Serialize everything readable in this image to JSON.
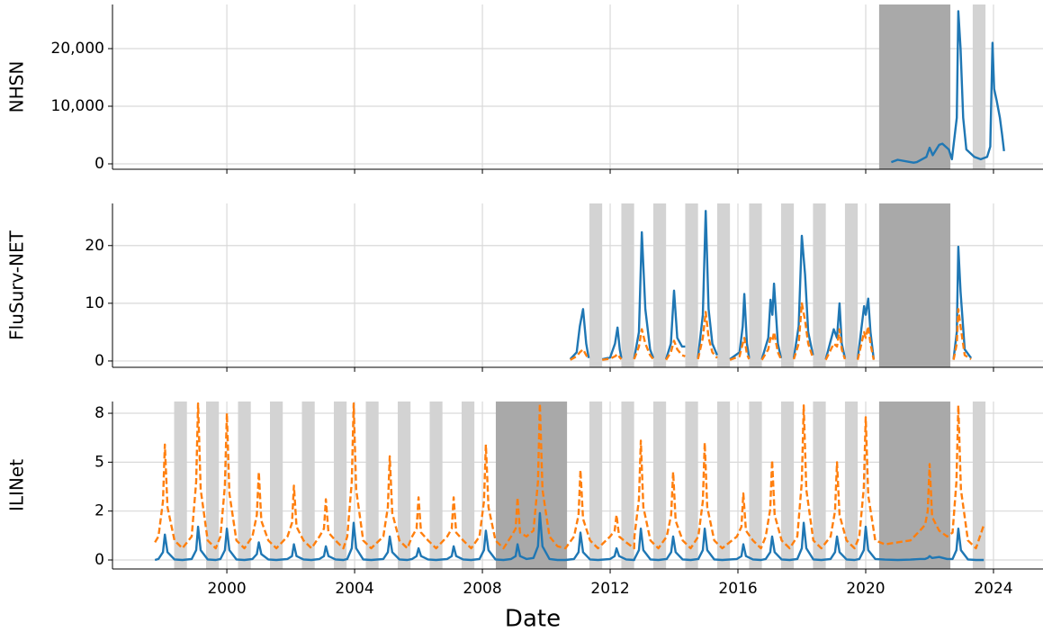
{
  "chart_data": [
    {
      "type": "line",
      "ylabel": "NHSN",
      "ylim": [
        -940,
        27660
      ],
      "yticks": [
        0,
        {
          "value": 10000,
          "label": "10,000"
        },
        {
          "value": 20000,
          "label": "20,000"
        }
      ],
      "light_spans": [
        [
          2023.35,
          2023.75
        ]
      ],
      "dark_spans": [
        [
          2020.42,
          2022.65
        ]
      ],
      "x": [
        2020.8,
        2021.0,
        2021.3,
        2021.5,
        2021.6,
        2021.9,
        2022.0,
        2022.1,
        2022.3,
        2022.4,
        2022.6,
        2022.7,
        2022.85,
        2022.9,
        2022.97,
        2023.05,
        2023.15,
        2023.4,
        2023.6,
        2023.8,
        2023.9,
        2023.97,
        2024.02,
        2024.1,
        2024.2,
        2024.27,
        2024.33
      ],
      "series": [
        {
          "color": "#1f77b4",
          "dashed": false,
          "values": [
            300,
            700,
            400,
            200,
            300,
            1200,
            2800,
            1500,
            3300,
            3500,
            2500,
            800,
            8000,
            26500,
            20000,
            8000,
            2500,
            1200,
            800,
            1200,
            3000,
            21000,
            13000,
            11000,
            8000,
            5000,
            2200
          ]
        }
      ]
    },
    {
      "type": "line",
      "ylabel": "FluSurv-NET",
      "ylim": [
        -1.1,
        27.3
      ],
      "yticks": [
        0,
        10,
        20
      ],
      "light_spans": [
        [
          2011.35,
          2011.75
        ],
        [
          2012.35,
          2012.75
        ],
        [
          2013.35,
          2013.75
        ],
        [
          2014.35,
          2014.75
        ],
        [
          2015.35,
          2015.75
        ],
        [
          2016.35,
          2016.75
        ],
        [
          2017.35,
          2017.75
        ],
        [
          2018.35,
          2018.75
        ],
        [
          2019.35,
          2019.75
        ]
      ],
      "dark_spans": [
        [
          2020.42,
          2022.65
        ]
      ],
      "x": [
        2010.75,
        2010.95,
        2011.05,
        2011.15,
        2011.25,
        2011.33,
        null,
        2011.75,
        2012.0,
        2012.15,
        2012.23,
        2012.3,
        2012.35,
        null,
        2012.75,
        2012.9,
        2012.99,
        2013.1,
        2013.25,
        2013.35,
        null,
        2013.75,
        2013.9,
        2014.0,
        2014.1,
        2014.25,
        2014.35,
        null,
        2014.75,
        2014.9,
        2014.99,
        2015.08,
        2015.2,
        2015.35,
        null,
        2015.75,
        2016.05,
        2016.15,
        2016.2,
        2016.28,
        2016.35,
        null,
        2016.75,
        2016.95,
        2017.02,
        2017.08,
        2017.13,
        2017.25,
        2017.35,
        null,
        2017.75,
        2017.9,
        2018.0,
        2018.1,
        2018.2,
        2018.35,
        null,
        2018.75,
        2019.0,
        2019.1,
        2019.18,
        2019.25,
        2019.35,
        null,
        2019.75,
        2019.95,
        2020.0,
        2020.08,
        2020.15,
        2020.25,
        null,
        2022.75,
        2022.85,
        2022.9,
        2022.97,
        2023.1,
        2023.3
      ],
      "series": [
        {
          "color": "#1f77b4",
          "dashed": false,
          "values": [
            0.3,
            1.5,
            6,
            9,
            3,
            0.5,
            null,
            0.3,
            0.6,
            3,
            5.8,
            2,
            0.5,
            null,
            0.4,
            5,
            22.3,
            9,
            2,
            0.5,
            null,
            0.3,
            3,
            12.2,
            4,
            2.5,
            2.5,
            null,
            0.5,
            8,
            26,
            9,
            3,
            1,
            null,
            0.3,
            1.5,
            6,
            11.6,
            3,
            0.5,
            null,
            0.3,
            4,
            10.6,
            8,
            13.4,
            3,
            0.5,
            null,
            0.5,
            6,
            21.7,
            15,
            5,
            1,
            null,
            0.3,
            5.5,
            4,
            10,
            3,
            0.5,
            null,
            0.3,
            9.5,
            8,
            10.8,
            5,
            0.3,
            null,
            0.3,
            5,
            19.8,
            12,
            2,
            0.5
          ]
        },
        {
          "color": "#ff7f0e",
          "dashed": true,
          "values": [
            0.2,
            0.8,
            1.5,
            2,
            1,
            0.3,
            null,
            0.2,
            0.4,
            0.8,
            1.2,
            0.6,
            0.3,
            null,
            0.3,
            2.5,
            5.5,
            3,
            1,
            0.3,
            null,
            0.2,
            1.5,
            3.5,
            2,
            1,
            0.8,
            null,
            0.3,
            4,
            8.5,
            4,
            1.5,
            0.5,
            null,
            0.2,
            0.8,
            3,
            4,
            1.2,
            0.3,
            null,
            0.2,
            2,
            4,
            3.5,
            5,
            1.5,
            0.3,
            null,
            0.3,
            3,
            10,
            7,
            3,
            0.5,
            null,
            0.2,
            3,
            2.5,
            5.5,
            2,
            0.3,
            null,
            0.2,
            5,
            4,
            6,
            3,
            0.2,
            null,
            0.2,
            3,
            9,
            6,
            1,
            0.3
          ]
        }
      ]
    },
    {
      "type": "line",
      "ylabel": "ILINet",
      "xlabel": "Date",
      "xlim": [
        1996.42,
        2025.55
      ],
      "xticks": [
        2000,
        2004,
        2008,
        2012,
        2016,
        2020,
        2024
      ],
      "ylim": [
        -0.46,
        8.1
      ],
      "yticks": [
        0,
        {
          "value": 2.5,
          "label": "2"
        },
        5,
        {
          "value": 7.5,
          "label": "8"
        }
      ],
      "light_spans": [
        [
          1998.35,
          1998.75
        ],
        [
          1999.35,
          1999.75
        ],
        [
          2000.35,
          2000.75
        ],
        [
          2001.35,
          2001.75
        ],
        [
          2002.35,
          2002.75
        ],
        [
          2003.35,
          2003.75
        ],
        [
          2004.35,
          2004.75
        ],
        [
          2005.35,
          2005.75
        ],
        [
          2006.35,
          2006.75
        ],
        [
          2007.35,
          2007.75
        ],
        [
          2011.35,
          2011.75
        ],
        [
          2012.35,
          2012.75
        ],
        [
          2013.35,
          2013.75
        ],
        [
          2014.35,
          2014.75
        ],
        [
          2015.35,
          2015.75
        ],
        [
          2016.35,
          2016.75
        ],
        [
          2017.35,
          2017.75
        ],
        [
          2018.35,
          2018.75
        ],
        [
          2019.35,
          2019.75
        ],
        [
          2023.35,
          2023.75
        ]
      ],
      "dark_spans": [
        [
          2008.42,
          2010.65
        ],
        [
          2020.42,
          2022.65
        ]
      ],
      "x": [
        1997.75,
        1997.86,
        1998.0,
        1998.06,
        1998.14,
        1998.36,
        1998.61,
        1998.9,
        1999.04,
        1999.1,
        1999.18,
        1999.4,
        1999.65,
        1999.8,
        1999.94,
        2000.0,
        2000.08,
        2000.3,
        2000.55,
        2000.8,
        2000.94,
        2001.0,
        2001.08,
        2001.3,
        2001.55,
        2001.9,
        2002.04,
        2002.1,
        2002.18,
        2002.4,
        2002.65,
        2002.9,
        2003.04,
        2003.1,
        2003.18,
        2003.4,
        2003.65,
        2003.77,
        2003.91,
        2003.97,
        2004.05,
        2004.27,
        2004.52,
        2004.9,
        2005.04,
        2005.1,
        2005.18,
        2005.4,
        2005.65,
        2005.8,
        2005.94,
        2006.0,
        2006.08,
        2006.3,
        2006.55,
        2006.9,
        2007.04,
        2007.1,
        2007.18,
        2007.4,
        2007.65,
        2007.91,
        2008.05,
        2008.11,
        2008.19,
        2008.41,
        2008.66,
        2008.9,
        2009.04,
        2009.1,
        2009.18,
        2009.38,
        2009.6,
        2009.74,
        2009.8,
        2009.88,
        2010.1,
        2010.35,
        2010.6,
        2010.87,
        2011.01,
        2011.07,
        2011.15,
        2011.37,
        2011.62,
        2012.0,
        2012.14,
        2012.2,
        2012.28,
        2012.5,
        2012.75,
        2012.76,
        2012.9,
        2012.96,
        2013.04,
        2013.26,
        2013.51,
        2013.77,
        2013.91,
        2013.97,
        2014.05,
        2014.27,
        2014.52,
        2014.76,
        2014.9,
        2014.96,
        2015.04,
        2015.26,
        2015.51,
        2015.97,
        2016.11,
        2016.17,
        2016.25,
        2016.47,
        2016.72,
        2016.87,
        2017.01,
        2017.07,
        2017.15,
        2017.37,
        2017.62,
        2017.86,
        2018.0,
        2018.06,
        2018.14,
        2018.36,
        2018.61,
        2018.9,
        2019.04,
        2019.1,
        2019.18,
        2019.4,
        2019.65,
        2019.8,
        2019.94,
        2020.0,
        2020.08,
        2020.3,
        2020.6,
        2021.0,
        2021.4,
        2021.7,
        2021.86,
        2021.94,
        2022.0,
        2022.08,
        2022.3,
        2022.55,
        2022.72,
        2022.84,
        2022.9,
        2022.98,
        2023.2,
        2023.45,
        2023.7
      ],
      "series": [
        {
          "color": "#ff7f0e",
          "dashed": true,
          "values": [
            0.9,
            1.2,
            3.0,
            5.9,
            2.7,
            1.0,
            0.6,
            1.2,
            4.0,
            8.0,
            3.6,
            1.0,
            0.6,
            1.2,
            3.8,
            7.5,
            3.4,
            1.0,
            0.6,
            1.2,
            2.3,
            4.5,
            2.0,
            1.0,
            0.6,
            1.2,
            1.9,
            3.8,
            1.7,
            1.0,
            0.6,
            1.2,
            1.6,
            3.1,
            1.4,
            1.0,
            0.6,
            1.2,
            4.0,
            8.0,
            3.6,
            1.0,
            0.6,
            1.2,
            2.7,
            5.3,
            2.4,
            1.0,
            0.6,
            1.2,
            1.6,
            3.2,
            1.4,
            1.0,
            0.6,
            1.2,
            1.6,
            3.2,
            1.4,
            1.0,
            0.6,
            1.2,
            3.0,
            5.9,
            2.7,
            1.0,
            0.6,
            1.2,
            1.6,
            3.2,
            1.4,
            1.2,
            1.5,
            4.0,
            8.0,
            3.6,
            1.2,
            0.7,
            0.6,
            1.2,
            2.3,
            4.6,
            2.1,
            1.0,
            0.6,
            1.2,
            1.5,
            2.3,
            1.2,
            0.9,
            0.6,
            1.2,
            3.1,
            6.1,
            2.7,
            1.0,
            0.6,
            1.2,
            2.3,
            4.5,
            2.0,
            1.0,
            0.6,
            1.2,
            3.0,
            6.0,
            2.7,
            1.0,
            0.6,
            1.2,
            1.7,
            3.4,
            1.5,
            1.0,
            0.6,
            1.2,
            2.6,
            5.1,
            2.3,
            1.0,
            0.6,
            1.2,
            4.0,
            7.9,
            3.6,
            1.0,
            0.6,
            1.2,
            2.5,
            5.0,
            2.3,
            1.0,
            0.6,
            1.2,
            3.7,
            7.3,
            3.3,
            1.0,
            0.8,
            0.9,
            1.0,
            1.5,
            1.8,
            2.5,
            4.9,
            2.2,
            1.5,
            1.2,
            1.4,
            4.0,
            7.9,
            3.6,
            1.0,
            0.6,
            1.8
          ]
        },
        {
          "color": "#1f77b4",
          "dashed": false,
          "values": [
            0,
            0.05,
            0.4,
            1.3,
            0.4,
            0.03,
            0,
            0.05,
            0.5,
            1.7,
            0.5,
            0.03,
            0,
            0.05,
            0.5,
            1.6,
            0.5,
            0.03,
            0,
            0.05,
            0.3,
            0.9,
            0.3,
            0.03,
            0,
            0.05,
            0.2,
            0.8,
            0.2,
            0.03,
            0,
            0.05,
            0.2,
            0.7,
            0.2,
            0.03,
            0,
            0.05,
            0.6,
            1.9,
            0.6,
            0.03,
            0,
            0.05,
            0.4,
            1.2,
            0.4,
            0.03,
            0,
            0.05,
            0.2,
            0.6,
            0.2,
            0.03,
            0,
            0.05,
            0.2,
            0.7,
            0.2,
            0.03,
            0,
            0.05,
            0.5,
            1.5,
            0.5,
            0.03,
            0,
            0.05,
            0.2,
            0.8,
            0.2,
            0.05,
            0.1,
            0.7,
            2.4,
            0.7,
            0.05,
            0,
            0,
            0.05,
            0.4,
            1.4,
            0.4,
            0.03,
            0,
            0.05,
            0.2,
            0.6,
            0.2,
            0.03,
            0,
            0.05,
            0.5,
            1.6,
            0.5,
            0.03,
            0,
            0.05,
            0.4,
            1.2,
            0.4,
            0.03,
            0,
            0.05,
            0.5,
            1.6,
            0.5,
            0.03,
            0,
            0.05,
            0.2,
            0.8,
            0.2,
            0.03,
            0,
            0.05,
            0.4,
            1.2,
            0.4,
            0.03,
            0,
            0.05,
            0.6,
            1.9,
            0.6,
            0.03,
            0,
            0.05,
            0.4,
            1.2,
            0.4,
            0.03,
            0,
            0.05,
            0.5,
            1.7,
            0.5,
            0.05,
            0.02,
            0,
            0.02,
            0.05,
            0.05,
            0.1,
            0.2,
            0.1,
            0.15,
            0.05,
            0.05,
            0.5,
            1.6,
            0.5,
            0.03,
            0,
            0
          ]
        }
      ]
    }
  ]
}
